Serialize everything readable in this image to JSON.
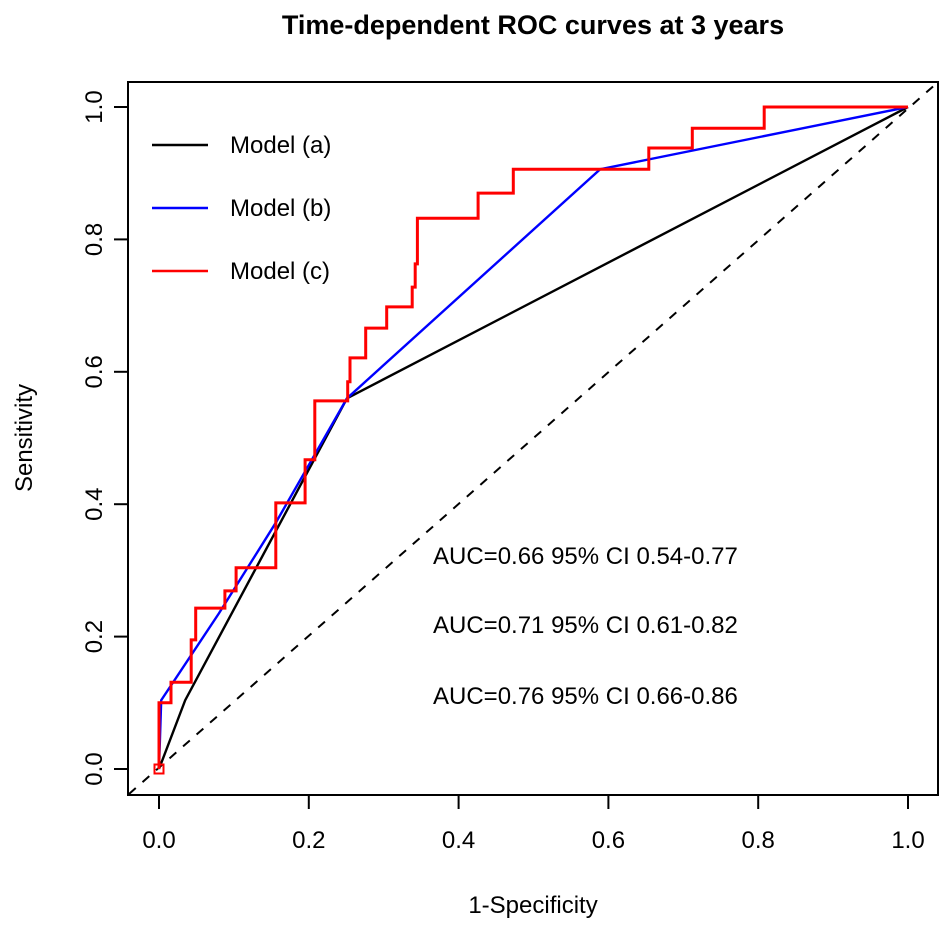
{
  "title": "Time-dependent ROC curves at 3 years",
  "chart_data": {
    "type": "line",
    "subtype": "roc-curves",
    "title": "Time-dependent ROC curves at 3 years",
    "xlabel": "1-Specificity",
    "ylabel": "Sensitivity",
    "xlim": [
      0.0,
      1.0
    ],
    "ylim": [
      0.0,
      1.0
    ],
    "grid": false,
    "axis_color": "#000000",
    "xticks": {
      "values": [
        0.0,
        0.2,
        0.4,
        0.6,
        0.8,
        1.0
      ],
      "labels": [
        "0.0",
        "0.2",
        "0.4",
        "0.6",
        "0.8",
        "1.0"
      ]
    },
    "yticks": {
      "values": [
        0.0,
        0.2,
        0.4,
        0.6,
        0.8,
        1.0
      ],
      "labels": [
        "0.0",
        "0.2",
        "0.4",
        "0.6",
        "0.8",
        "1.0"
      ]
    },
    "reference_line": {
      "type": "diagonal",
      "style": "dashed",
      "color": "#000000",
      "from": [
        0,
        0
      ],
      "to": [
        1,
        1
      ]
    },
    "origin_marker": {
      "shape": "open-square",
      "color": "#ff0000",
      "x": 0,
      "y": 0
    },
    "legend": {
      "position": "top-left",
      "items": [
        {
          "label": "Model (a)",
          "color": "#000000"
        },
        {
          "label": "Model (b)",
          "color": "#0000ff"
        },
        {
          "label": "Model (c)",
          "color": "#ff0000"
        }
      ]
    },
    "series": [
      {
        "name": "Model (a)",
        "color": "#000000",
        "line_width": 2.4,
        "auc": 0.66,
        "ci_95": "0.54-0.77",
        "points": [
          [
            0,
            0
          ],
          [
            0.035,
            0.104
          ],
          [
            0.251,
            0.56
          ],
          [
            1,
            1
          ]
        ]
      },
      {
        "name": "Model (b)",
        "color": "#0000ff",
        "line_width": 2.4,
        "auc": 0.71,
        "ci_95": "0.61-0.82",
        "points": [
          [
            0,
            0
          ],
          [
            0.003,
            0.104
          ],
          [
            0.08,
            0.235
          ],
          [
            0.156,
            0.372
          ],
          [
            0.251,
            0.56
          ],
          [
            0.589,
            0.906
          ],
          [
            1,
            1
          ]
        ]
      },
      {
        "name": "Model (c)",
        "color": "#ff0000",
        "line_width": 3,
        "auc": 0.76,
        "ci_95": "0.66-0.86",
        "points": [
          [
            0,
            0
          ],
          [
            0,
            0.1
          ],
          [
            0.016,
            0.1
          ],
          [
            0.016,
            0.131
          ],
          [
            0.043,
            0.131
          ],
          [
            0.043,
            0.195
          ],
          [
            0.049,
            0.195
          ],
          [
            0.049,
            0.243
          ],
          [
            0.088,
            0.243
          ],
          [
            0.088,
            0.269
          ],
          [
            0.103,
            0.269
          ],
          [
            0.103,
            0.304
          ],
          [
            0.156,
            0.304
          ],
          [
            0.156,
            0.402
          ],
          [
            0.195,
            0.402
          ],
          [
            0.195,
            0.467
          ],
          [
            0.208,
            0.467
          ],
          [
            0.208,
            0.556
          ],
          [
            0.252,
            0.556
          ],
          [
            0.252,
            0.585
          ],
          [
            0.255,
            0.585
          ],
          [
            0.255,
            0.621
          ],
          [
            0.276,
            0.621
          ],
          [
            0.276,
            0.666
          ],
          [
            0.304,
            0.666
          ],
          [
            0.304,
            0.698
          ],
          [
            0.338,
            0.698
          ],
          [
            0.338,
            0.728
          ],
          [
            0.342,
            0.728
          ],
          [
            0.342,
            0.763
          ],
          [
            0.345,
            0.763
          ],
          [
            0.345,
            0.832
          ],
          [
            0.426,
            0.832
          ],
          [
            0.426,
            0.87
          ],
          [
            0.473,
            0.87
          ],
          [
            0.473,
            0.906
          ],
          [
            0.654,
            0.906
          ],
          [
            0.654,
            0.938
          ],
          [
            0.712,
            0.938
          ],
          [
            0.712,
            0.968
          ],
          [
            0.808,
            0.968
          ],
          [
            0.808,
            1
          ],
          [
            1,
            1
          ]
        ]
      }
    ],
    "annotations": [
      {
        "text": "AUC=0.66  95% CI 0.54-0.77",
        "color": "#000000"
      },
      {
        "text": "AUC=0.71  95% CI 0.61-0.82",
        "color": "#0000ff"
      },
      {
        "text": "AUC=0.76  95% CI 0.66-0.86",
        "color": "#ff0000"
      }
    ]
  }
}
